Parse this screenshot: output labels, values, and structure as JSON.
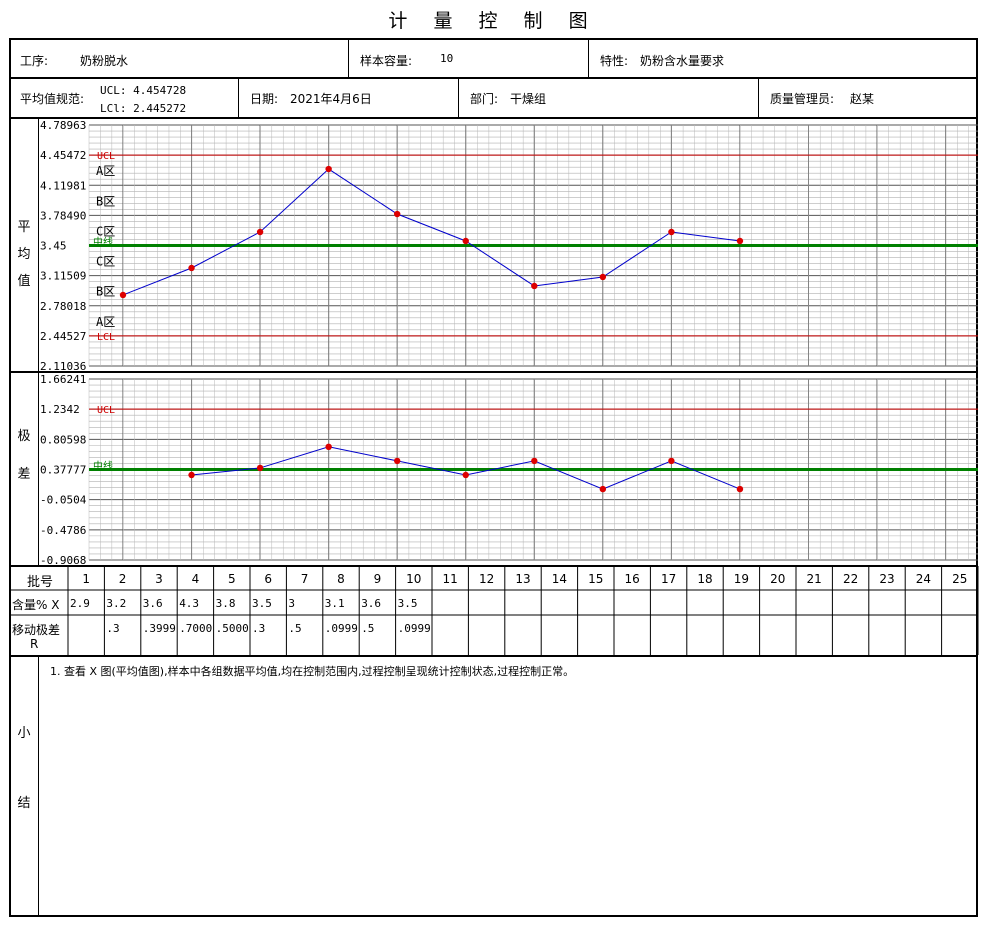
{
  "title": "计 量 控 制 图",
  "header": {
    "process_label": "工序:",
    "process_value": "奶粉脱水",
    "sample_label": "样本容量:",
    "sample_value": "10",
    "char_label": "特性:",
    "char_value": "奶粉含水量要求",
    "spec_label": "平均值规范:",
    "ucl_line": "UCL:  4.454728",
    "lcl_line": "LCl:  2.445272",
    "date_label": "日期:",
    "date_value": "2021年4月6日",
    "dept_label": "部门:",
    "dept_value": "干燥组",
    "qm_label": "质量管理员:",
    "qm_value": "赵某"
  },
  "side_labels": {
    "mean": [
      "平",
      "均",
      "值"
    ],
    "range": [
      "极",
      "差"
    ],
    "summary": [
      "小",
      "结"
    ]
  },
  "table": {
    "row1_label": "批号",
    "row2_label": "含量% X",
    "row3_label": "移动极差",
    "row3_sub": "R",
    "batches": [
      "1",
      "2",
      "3",
      "4",
      "5",
      "6",
      "7",
      "8",
      "9",
      "10",
      "11",
      "12",
      "13",
      "14",
      "15",
      "16",
      "17",
      "18",
      "19",
      "20",
      "21",
      "22",
      "23",
      "24",
      "25"
    ],
    "content": [
      "2.9",
      "3.2",
      "3.6",
      "4.3",
      "3.8",
      "3.5",
      "3",
      "3.1",
      "3.6",
      "3.5",
      "",
      "",
      "",
      "",
      "",
      "",
      "",
      "",
      "",
      "",
      "",
      "",
      "",
      "",
      ""
    ],
    "moving_range": [
      "",
      ".3",
      ".3999",
      ".7000",
      ".5000",
      ".3",
      ".5",
      ".0999",
      ".5",
      ".0999",
      "",
      "",
      "",
      "",
      "",
      "",
      "",
      "",
      "",
      "",
      "",
      "",
      "",
      "",
      ""
    ]
  },
  "summary_text": "1. 查看 X 图(平均值图),样本中各组数据平均值,均在控制范围内,过程控制呈现统计控制状态,过程控制正常。",
  "colors": {
    "grid": "#808080",
    "control_limit": "#cc0000",
    "center": "#008000",
    "series": "#0000cc",
    "point": "#dd0000"
  },
  "chart_data": [
    {
      "type": "line",
      "name": "平均值",
      "ylim": [
        2.11036,
        4.78963
      ],
      "y_ticks": [
        "4.78963",
        "4.45472",
        "4.11981",
        "3.78490",
        "3.45",
        "3.11509",
        "2.78018",
        "2.44527",
        "2.11036"
      ],
      "ucl": 4.45472,
      "lcl": 2.44527,
      "center": 3.45,
      "ucl_label": "UCL",
      "lcl_label": "LCL",
      "center_label": "中线",
      "zones": [
        "A区",
        "B区",
        "C区",
        "C区",
        "B区",
        "A区"
      ],
      "x": [
        1,
        2,
        3,
        4,
        5,
        6,
        7,
        8,
        9,
        10
      ],
      "y": [
        2.9,
        3.2,
        3.6,
        4.3,
        3.8,
        3.5,
        3.0,
        3.1,
        3.6,
        3.5
      ]
    },
    {
      "type": "line",
      "name": "极差",
      "ylim": [
        -0.9068,
        1.66241
      ],
      "y_ticks": [
        "1.66241",
        "1.2342",
        "0.80598",
        "0.37777",
        "-0.0504",
        "-0.4786",
        "-0.9068"
      ],
      "ucl": 1.2342,
      "center": 0.37777,
      "ucl_label": "UCL",
      "center_label": "中线",
      "x": [
        2,
        3,
        4,
        5,
        6,
        7,
        8,
        9,
        10
      ],
      "y": [
        0.3,
        0.4,
        0.7,
        0.5,
        0.3,
        0.5,
        0.1,
        0.5,
        0.1
      ]
    }
  ]
}
